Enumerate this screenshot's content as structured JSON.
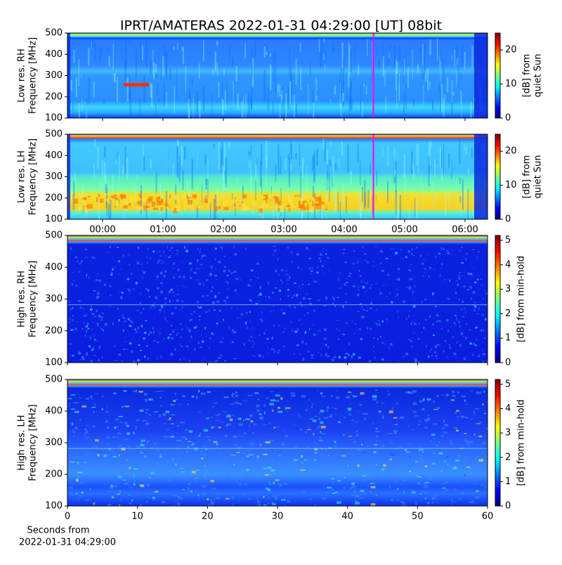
{
  "title": "IPRT/AMATERAS 2022-01-31 04:29:00 [UT]   08bit",
  "chart_data": [
    {
      "type": "spectrogram",
      "colormap": "jet",
      "ylabel": [
        "Low res. RH",
        "Frequency [MHz]"
      ],
      "xlim": [
        -0.581,
        6.372
      ],
      "ylim": [
        100,
        500
      ],
      "yticks": [
        100,
        200,
        300,
        400,
        500
      ],
      "cursor_x": 4.483,
      "cursor_color": "#ff00ff",
      "colorbar": {
        "lim": [
          0,
          25
        ],
        "ticks": [
          0,
          10,
          20
        ],
        "label": [
          "[dB] from",
          "quiet Sun"
        ]
      }
    },
    {
      "type": "spectrogram",
      "colormap": "jet",
      "ylabel": [
        "Low res. LH",
        "Frequency [MHz]"
      ],
      "xlim": [
        -0.581,
        6.372
      ],
      "ylim": [
        100,
        500
      ],
      "yticks": [
        100,
        200,
        300,
        400,
        500
      ],
      "xticks": [
        {
          "value": 0,
          "label": "00:00"
        },
        {
          "value": 1,
          "label": "01:00"
        },
        {
          "value": 2,
          "label": "02:00"
        },
        {
          "value": 3,
          "label": "03:00"
        },
        {
          "value": 4,
          "label": "04:00"
        },
        {
          "value": 5,
          "label": "05:00"
        },
        {
          "value": 6,
          "label": "06:00"
        }
      ],
      "cursor_x": 4.483,
      "cursor_color": "#ff00ff",
      "colorbar": {
        "lim": [
          0,
          25
        ],
        "ticks": [
          0,
          10,
          20
        ],
        "label": [
          "[dB] from",
          "quiet Sun"
        ]
      }
    },
    {
      "type": "spectrogram",
      "colormap": "jet",
      "ylabel": [
        "High res. RH",
        "Frequency [MHz]"
      ],
      "xlim": [
        0,
        60
      ],
      "ylim": [
        100,
        500
      ],
      "yticks": [
        100,
        200,
        300,
        400,
        500
      ],
      "colorbar": {
        "lim": [
          0,
          5.2
        ],
        "ticks": [
          0,
          1,
          2,
          3,
          4,
          5
        ],
        "label": [
          "[dB] from min-hold"
        ]
      }
    },
    {
      "type": "spectrogram",
      "colormap": "jet",
      "ylabel": [
        "High res. LH",
        "Frequency [MHz]"
      ],
      "xlabel": [
        "Seconds from",
        "2022-01-31 04:29:00"
      ],
      "xlim": [
        0,
        60
      ],
      "ylim": [
        100,
        500
      ],
      "yticks": [
        100,
        200,
        300,
        400,
        500
      ],
      "xticks": [
        0,
        10,
        20,
        30,
        40,
        50,
        60
      ],
      "colorbar": {
        "lim": [
          0,
          5.2
        ],
        "ticks": [
          0,
          1,
          2,
          3,
          4,
          5
        ],
        "label": [
          "[dB] from min-hold"
        ]
      }
    }
  ]
}
